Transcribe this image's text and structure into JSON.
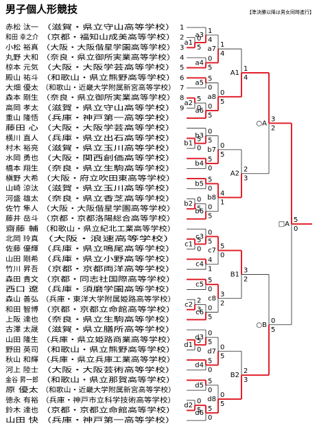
{
  "header": {
    "title": "男子個人形競技",
    "note": "【準決勝以降は男女同時進行】"
  },
  "players": [
    {
      "name": "赤松 汰一",
      "school": "（滋賀・県立守山高等学校）",
      "seed": 1
    },
    {
      "name": "和田 幸之介",
      "school": "（京都・福知山成美高等学校）",
      "seed": 2
    },
    {
      "name": "小松 裕真",
      "school": "（大阪・大阪偕星学園高等学校）",
      "seed": 3
    },
    {
      "name": "丸野 大和",
      "school": "（奈良・県立御所実業高等学校）",
      "seed": 4
    },
    {
      "name": "椋本 元気",
      "school": "（大阪・大阪学芸高等学校）",
      "seed": 5
    },
    {
      "name": "殿山 祐斗",
      "school": "（和歌山・県立熊野高等学校）",
      "seed": 6
    },
    {
      "name": "大畑 優太",
      "school": "（和歌山・近畿大学附属新宮高等学校）",
      "seed": 7
    },
    {
      "name": "森本 剛生",
      "school": "（奈良・県立御所実業高等学校）",
      "seed": 8
    },
    {
      "name": "高岡 孝太",
      "school": "（滋賀・県立守山高等学校）",
      "seed": 9
    },
    {
      "name": "重山 隆悟",
      "school": "（兵庫・神戸第一高等学校）"
    },
    {
      "name": "藤田 心",
      "school": "（大阪・大阪学芸高等学校）"
    },
    {
      "name": "横川 直人",
      "school": "（兵庫・県立出石高等学校）"
    },
    {
      "name": "村木 裕亮",
      "school": "（滋賀・県立玉川高等学校）"
    },
    {
      "name": "水岡 勇也",
      "school": "（大阪・関西創価高等学校）"
    },
    {
      "name": "橋本 翔生",
      "school": "（奈良・県立生駒高等学校）"
    },
    {
      "name": "槇野 大希",
      "school": "（大阪・府立吹田東高等学校）"
    },
    {
      "name": "山崎 涼汰",
      "school": "（滋賀・県立玉川高等学校）"
    },
    {
      "name": "河盛 雄太",
      "school": "（奈良・県立香芝高等学校）"
    },
    {
      "name": "佐竹 隼人",
      "school": "（大阪・大阪偕星学園高等学校）"
    },
    {
      "name": "藤井 岳斗",
      "school": "（京都・京都洛陽総合高等学校）"
    },
    {
      "name": "齋藤 輔",
      "school": "（和歌山・県立紀北工業高等学校）"
    },
    {
      "name": "北岡 玲真",
      "school": "（大阪・浪速高等学校）"
    },
    {
      "name": "佐藤 優輝",
      "school": "（兵庫・県立鳴尾高等学校）"
    },
    {
      "name": "山田 剛希",
      "school": "（兵庫・県立小野高等学校）"
    },
    {
      "name": "竹川 昇吾",
      "school": "（京都・京都両洋高等学校）"
    },
    {
      "name": "森田 貴文",
      "school": "（京都・同志社国際高等学校）"
    },
    {
      "name": "西口 遼",
      "school": "（兵庫・須磨学園高等学校）"
    },
    {
      "name": "森山 善弘",
      "school": "（兵庫・東洋大学附属姫路高等学校）"
    },
    {
      "name": "和田 智博",
      "school": "（京都・京都立命館高等学校）"
    },
    {
      "name": "上阪 達也",
      "school": "（奈良・県立生駒高等学校）"
    },
    {
      "name": "古澤 太晟",
      "school": "（滋賀・県立膳所高等学校）"
    },
    {
      "name": "山田 隆生",
      "school": "（兵庫・県立姫路商業高等学校）"
    },
    {
      "name": "野田 英司",
      "school": "（和歌山・県立熊野高等学校）"
    },
    {
      "name": "秋山 和輝",
      "school": "（兵庫・県立兵庫工業高等学校）"
    },
    {
      "name": "河上 陸士",
      "school": "（大阪・大阪芸術高等学校）"
    },
    {
      "name": "金谷 昇一郎",
      "school": "（和歌山・県立那賀高等学校）"
    },
    {
      "name": "原 優太",
      "school": "（和歌山・近畿大学附属新宮高等学校）"
    },
    {
      "name": "徳永 有裕",
      "school": "（兵庫・神戸市立科学技術高等学校）"
    },
    {
      "name": "鈴木 達也",
      "school": "（京都・京都立命館高等学校）"
    },
    {
      "name": "山田 快",
      "school": "（兵庫・神戸第一高等学校）"
    }
  ],
  "quarters": [
    {
      "matches": [
        {
          "label": "a1",
          "scores": [
            0,
            5
          ]
        },
        {
          "label": "a2",
          "scores": [
            5,
            0
          ]
        },
        {
          "label": "a3",
          "scores": [
            1,
            4
          ]
        },
        {
          "label": "a4",
          "scores": [
            0,
            5
          ]
        },
        {
          "label": "a5",
          "scores": [
            5,
            0
          ]
        },
        {
          "label": "a6",
          "scores": [
            0,
            5
          ]
        },
        {
          "label": "a7",
          "scores": [
            1,
            4
          ]
        },
        {
          "label": "a8",
          "scores": [
            0,
            5
          ]
        },
        {
          "label": "A1",
          "scores": [
            1,
            4
          ]
        }
      ]
    },
    {
      "matches": [
        {
          "label": "b1",
          "scores": [
            5,
            0
          ]
        },
        {
          "label": "b2",
          "scores": [
            0,
            5
          ]
        },
        {
          "label": "b3",
          "scores": [
            0,
            5
          ]
        },
        {
          "label": "b4",
          "scores": [
            5,
            0
          ]
        },
        {
          "label": "b5",
          "scores": [
            5,
            0
          ]
        },
        {
          "label": "b6",
          "scores": [
            0,
            5
          ]
        },
        {
          "label": "b7",
          "scores": [
            0,
            5
          ]
        },
        {
          "label": "b8",
          "scores": [
            4,
            1
          ]
        },
        {
          "label": "A2",
          "scores": [
            2,
            3
          ]
        }
      ]
    },
    {
      "matches": [
        {
          "label": "c1",
          "scores": [
            5,
            0
          ]
        },
        {
          "label": "c2",
          "scores": [
            2,
            3
          ]
        },
        {
          "label": "c3",
          "scores": [
            0,
            5
          ]
        },
        {
          "label": "c4",
          "scores": [
            4,
            1
          ]
        },
        {
          "label": "c5",
          "scores": [
            5,
            0
          ]
        },
        {
          "label": "c6",
          "scores": [
            0,
            5
          ]
        },
        {
          "label": "c7",
          "scores": [
            5,
            0
          ]
        },
        {
          "label": "c8",
          "scores": [
            3,
            2
          ]
        },
        {
          "label": "B1",
          "scores": [
            3,
            2
          ]
        }
      ]
    },
    {
      "matches": [
        {
          "label": "d1",
          "scores": [
            5,
            0
          ]
        },
        {
          "label": "d2",
          "scores": [
            0,
            5
          ]
        },
        {
          "label": "d3",
          "scores": [
            0,
            5
          ]
        },
        {
          "label": "d4",
          "scores": [
            5,
            0
          ]
        },
        {
          "label": "d5",
          "scores": [
            5,
            0
          ]
        },
        {
          "label": "d6",
          "scores": [
            5,
            0
          ]
        },
        {
          "label": "d7",
          "scores": [
            0,
            5
          ]
        },
        {
          "label": "d8",
          "scores": [
            0,
            5
          ]
        },
        {
          "label": "B2",
          "scores": [
            2,
            3
          ]
        }
      ]
    }
  ],
  "semis": [
    {
      "label": "○A",
      "scores": [
        3,
        2
      ]
    },
    {
      "label": "○B",
      "scores": [
        0,
        5
      ]
    }
  ],
  "final": {
    "label": "□A",
    "scores": [
      5,
      0
    ]
  }
}
